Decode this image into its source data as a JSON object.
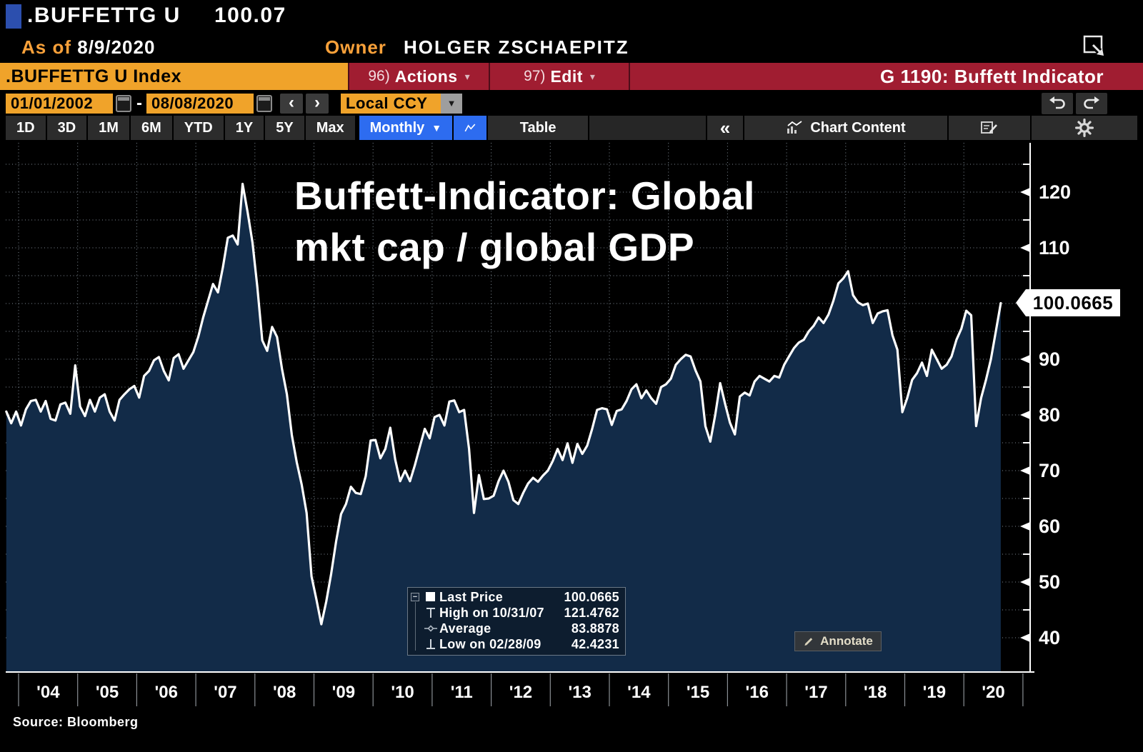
{
  "header": {
    "ticker": ".BUFFETTG U",
    "last_value": "100.07",
    "as_of_label": "As of",
    "as_of_date": "8/9/2020",
    "owner_label": "Owner",
    "owner_name": "HOLGER ZSCHAEPITZ",
    "security_field": ".BUFFETTG U Index",
    "actions_num": "96)",
    "actions_label": "Actions",
    "edit_num": "97)",
    "edit_label": "Edit",
    "chart_id_title": "G 1190: Buffett Indicator"
  },
  "toolbar": {
    "date_from": "01/01/2002",
    "date_to": "08/08/2020",
    "currency": "Local CCY",
    "periods": [
      "1D",
      "3D",
      "1M",
      "6M",
      "YTD",
      "1Y",
      "5Y",
      "Max"
    ],
    "frequency": "Monthly",
    "table_label": "Table",
    "chart_content_label": "Chart Content"
  },
  "icons": {
    "caret_down": "▾",
    "dropdown": "▼",
    "chevron_left": "‹",
    "chevron_right": "›",
    "collapse": "«",
    "range_dash": "-",
    "tree_toggle": "−"
  },
  "legend": {
    "rows": [
      {
        "marker": "square",
        "label": "Last Price",
        "value": "100.0665"
      },
      {
        "marker": "high",
        "label": "High on 10/31/07",
        "value": "121.4762"
      },
      {
        "marker": "average",
        "label": "Average",
        "value": "83.8878"
      },
      {
        "marker": "low",
        "label": "Low on 02/28/09",
        "value": "42.4231"
      }
    ]
  },
  "annotate_label": "Annotate",
  "source": "Source:  Bloomberg",
  "last_price_badge": "100.0665",
  "chart_data": {
    "type": "area",
    "title": "Buffett-Indicator: Global mkt cap / global GDP",
    "title_lines": [
      "Buffett-Indicator: Global",
      "mkt cap / global GDP"
    ],
    "frequency": "monthly",
    "start": {
      "year": 2003,
      "month": 10
    },
    "monthly_by_year": {
      "2003": [
        80.6,
        78.5,
        80.6
      ],
      "2004": [
        78.1,
        81.0,
        82.5,
        82.7,
        80.6,
        82.5,
        79.3,
        79.0,
        81.9,
        82.2,
        80.2,
        88.9
      ],
      "2005": [
        81.5,
        79.8,
        82.7,
        80.6,
        83.1,
        83.7,
        80.6,
        79.0,
        82.7,
        83.7,
        84.6,
        85.2
      ],
      "2006": [
        83.1,
        87.0,
        87.9,
        89.8,
        90.4,
        87.9,
        86.2,
        90.2,
        90.9,
        88.3,
        89.8,
        91.3
      ],
      "2007": [
        94.0,
        97.5,
        100.5,
        103.5,
        102.0,
        106.5,
        111.8,
        112.2,
        110.6,
        121.4762,
        116.5,
        111.0
      ],
      "2008": [
        103.0,
        93.4,
        91.5,
        95.8,
        94.0,
        88.3,
        83.7,
        76.4,
        71.5,
        67.5,
        62.4,
        51.0
      ],
      "2009": [
        46.9,
        42.4231,
        46.5,
        51.5,
        57.3,
        62.2,
        64.0,
        67.1,
        66.0,
        65.8,
        69.0,
        75.4
      ],
      "2010": [
        75.5,
        72.2,
        73.9,
        77.7,
        72.0,
        68.1,
        70.0,
        68.1,
        71.0,
        74.3,
        77.5,
        75.8
      ],
      "2011": [
        79.6,
        80.0,
        78.1,
        82.4,
        82.6,
        80.5,
        80.9,
        73.9,
        62.4,
        69.2,
        64.9,
        65.0
      ],
      "2012": [
        65.5,
        68.1,
        70.0,
        68.0,
        64.7,
        64.0,
        66.0,
        67.7,
        68.7,
        68.0,
        69.1,
        70.0
      ],
      "2013": [
        71.7,
        73.9,
        71.9,
        74.9,
        71.4,
        74.8,
        73.0,
        74.5,
        77.5,
        80.9,
        81.2,
        81.0
      ],
      "2014": [
        78.2,
        80.7,
        81.0,
        82.5,
        84.6,
        85.5,
        83.0,
        84.4,
        83.0,
        82.0,
        85.0,
        85.5
      ],
      "2015": [
        86.5,
        89.0,
        90.0,
        90.8,
        90.5,
        88.0,
        86.0,
        78.0,
        75.2,
        80.0,
        85.7,
        82.0
      ],
      "2016": [
        78.6,
        76.5,
        83.3,
        84.0,
        83.5,
        86.0,
        87.0,
        86.5,
        86.0,
        87.0,
        86.7,
        89.0
      ],
      "2017": [
        90.5,
        92.0,
        93.0,
        93.5,
        95.0,
        96.0,
        97.5,
        96.5,
        98.0,
        100.5,
        103.6,
        104.5
      ],
      "2018": [
        105.8,
        101.5,
        100.2,
        99.7,
        100.0,
        96.5,
        98.2,
        98.6,
        98.8,
        94.3,
        91.7,
        80.5
      ],
      "2019": [
        83.0,
        86.3,
        87.5,
        89.4,
        87.0,
        91.7,
        90.0,
        88.3,
        89.0,
        90.5,
        93.5,
        95.5
      ],
      "2020": [
        98.7,
        97.9,
        78.0,
        83.0,
        86.3,
        90.0,
        95.0,
        100.0665
      ]
    },
    "stats": {
      "last_price": 100.0665,
      "high": {
        "date": "10/31/07",
        "value": 121.4762
      },
      "average": 83.8878,
      "low": {
        "date": "02/28/09",
        "value": 42.4231
      }
    },
    "y_axis": {
      "major_ticks": [
        40,
        50,
        60,
        70,
        80,
        90,
        100,
        110,
        120
      ],
      "gridline_step": 5,
      "visible_range": [
        33.8,
        128.8
      ]
    },
    "x_axis": {
      "tick_years": [
        2004,
        2005,
        2006,
        2007,
        2008,
        2009,
        2010,
        2011,
        2012,
        2013,
        2014,
        2015,
        2016,
        2017,
        2018,
        2019,
        2020,
        2021
      ],
      "year_labels": [
        "'04",
        "'05",
        "'06",
        "'07",
        "'08",
        "'09",
        "'10",
        "'11",
        "'12",
        "'13",
        "'14",
        "'15",
        "'16",
        "'17",
        "'18",
        "'19",
        "'20"
      ]
    },
    "grid": true,
    "legend_position": "inside-bottom-center",
    "colors": {
      "background": "#000000",
      "area_fill": "#122b48",
      "line": "#ffffff",
      "grid": "#9fadba",
      "axis": "#ffffff",
      "accent_amber": "#f0a32a",
      "accent_red": "#a01d31",
      "accent_blue": "#2d6cf0",
      "badge_bg": "#ffffff"
    }
  }
}
